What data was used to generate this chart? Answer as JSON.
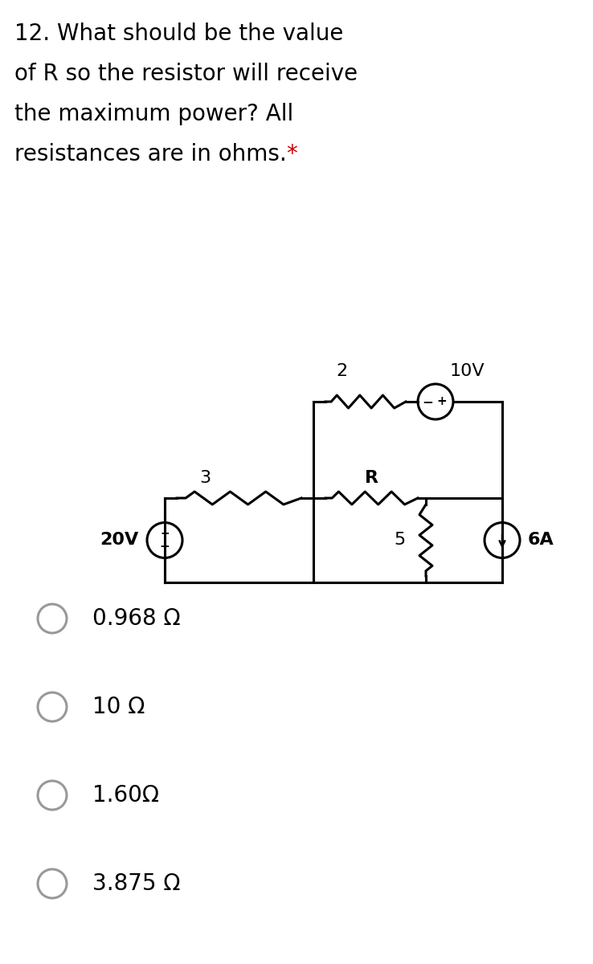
{
  "title_line1": "12. What should be the value",
  "title_line2": "of R so the resistor will receive",
  "title_line3": "the maximum power? All",
  "title_line4": "resistances are in ohms.",
  "title_star": "*",
  "options": [
    "0.968 Ω",
    "10 Ω",
    "1.60Ω",
    "3.875 Ω"
  ],
  "background_color": "#ffffff",
  "text_color": "#000000",
  "circuit_color": "#000000",
  "star_color": "#cc0000",
  "option_circle_color": "#999999",
  "font_size_title": 20,
  "font_size_option": 20,
  "circuit": {
    "voltage_20V_label": "20V",
    "voltage_10V_label": "10V",
    "resistor_2_label": "2",
    "resistor_3_label": "3",
    "resistor_R_label": "R",
    "resistor_5_label": "5",
    "current_6A_label": "6A"
  }
}
